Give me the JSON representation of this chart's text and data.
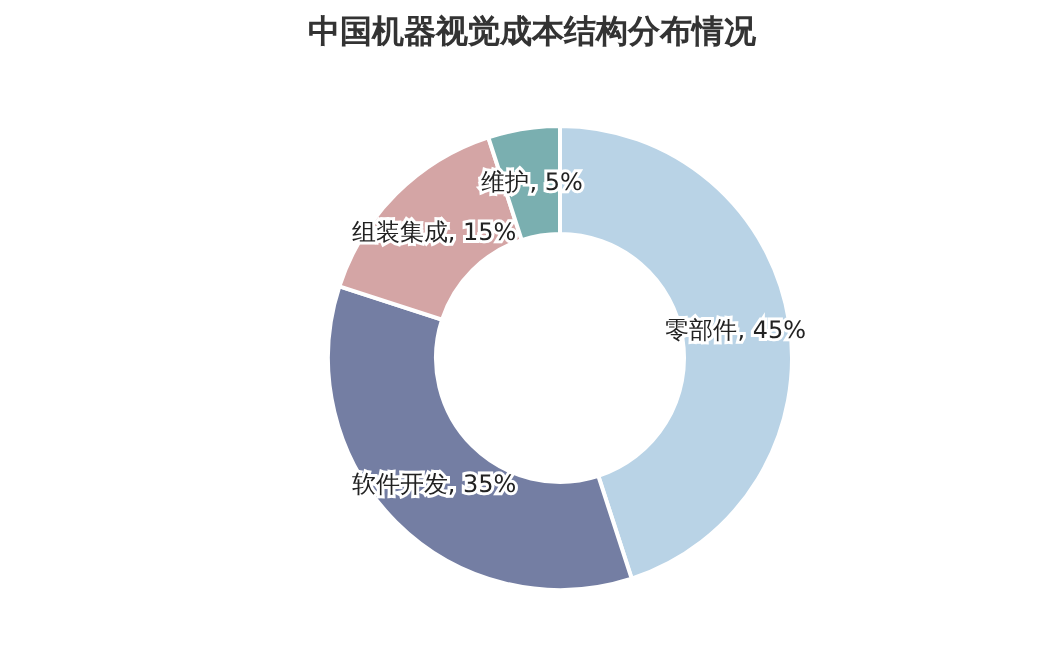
{
  "chart_data": {
    "type": "donut",
    "title": "中国机器视觉成本结构分布情况",
    "categories": [
      "零部件",
      "软件开发",
      "组装集成",
      "维护"
    ],
    "values": [
      45,
      35,
      15,
      5
    ],
    "colors": [
      "#b9d3e6",
      "#747ea3",
      "#d4a5a5",
      "#7aafb0"
    ],
    "value_labels": [
      ", 45%",
      ", 35%",
      ", 15%",
      ", 5%"
    ],
    "legend": false
  }
}
